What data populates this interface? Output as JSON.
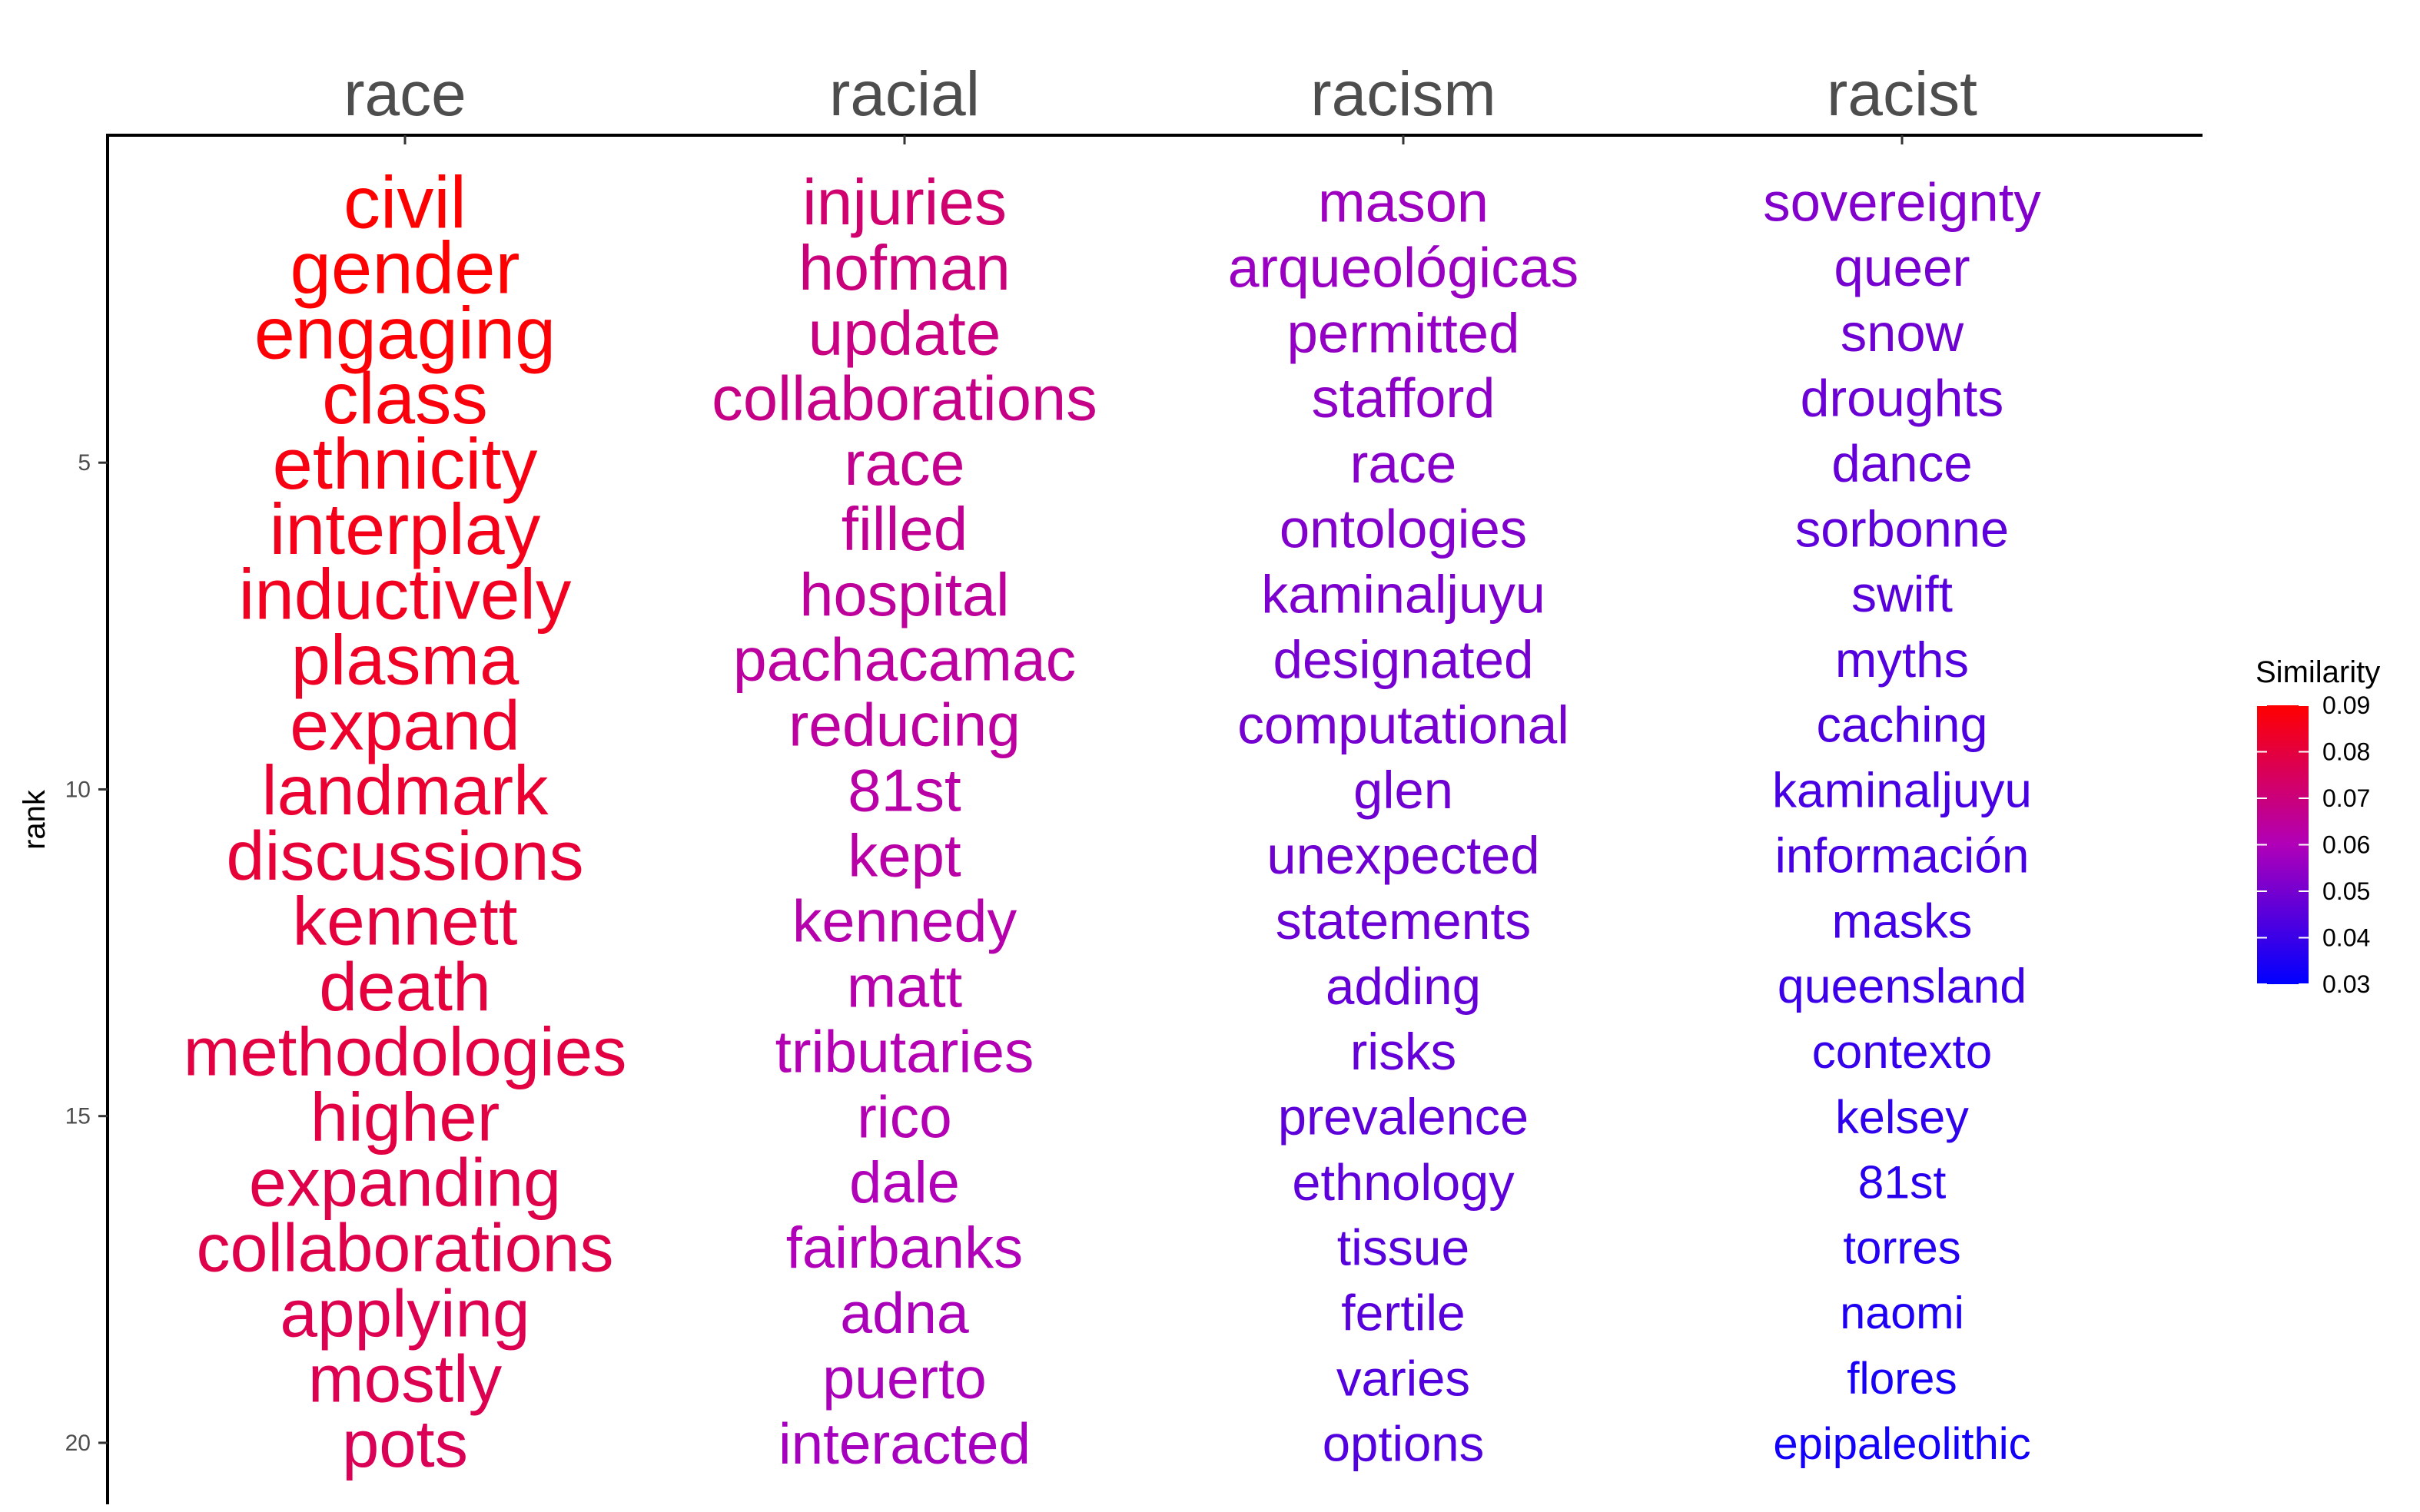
{
  "chart_data": {
    "type": "table",
    "ylabel": "rank",
    "y_ticks": [
      5,
      10,
      15,
      20
    ],
    "legend": {
      "title": "Similarity",
      "ticks": [
        "0.09",
        "0.08",
        "0.07",
        "0.06",
        "0.05",
        "0.04",
        "0.03"
      ],
      "range": [
        0.03,
        0.09
      ],
      "low_color": "#0000ff",
      "high_color": "#ff0000",
      "placement": "right"
    },
    "columns": [
      {
        "name": "race",
        "words": [
          "civil",
          "gender",
          "engaging",
          "class",
          "ethnicity",
          "interplay",
          "inductively",
          "plasma",
          "expand",
          "landmark",
          "discussions",
          "kennett",
          "death",
          "methodologies",
          "higher",
          "expanding",
          "collaborations",
          "applying",
          "mostly",
          "pots"
        ],
        "similarity": [
          0.093,
          0.091,
          0.089,
          0.088,
          0.087,
          0.086,
          0.085,
          0.084,
          0.083,
          0.082,
          0.081,
          0.08,
          0.08,
          0.079,
          0.079,
          0.078,
          0.078,
          0.077,
          0.077,
          0.076
        ]
      },
      {
        "name": "racial",
        "words": [
          "injuries",
          "hofman",
          "update",
          "collaborations",
          "race",
          "filled",
          "hospital",
          "pachacamac",
          "reducing",
          "81st",
          "kept",
          "kennedy",
          "matt",
          "tributaries",
          "rico",
          "dale",
          "fairbanks",
          "adna",
          "puerto",
          "interacted"
        ],
        "similarity": [
          0.072,
          0.07,
          0.069,
          0.068,
          0.067,
          0.066,
          0.065,
          0.064,
          0.064,
          0.063,
          0.063,
          0.062,
          0.062,
          0.061,
          0.061,
          0.06,
          0.06,
          0.059,
          0.059,
          0.058
        ]
      },
      {
        "name": "racism",
        "words": [
          "mason",
          "arqueológicas",
          "permitted",
          "stafford",
          "race",
          "ontologies",
          "kaminaljuyu",
          "designated",
          "computational",
          "glen",
          "unexpected",
          "statements",
          "adding",
          "risks",
          "prevalence",
          "ethnology",
          "tissue",
          "fertile",
          "varies",
          "options"
        ],
        "similarity": [
          0.057,
          0.056,
          0.055,
          0.054,
          0.053,
          0.052,
          0.051,
          0.05,
          0.05,
          0.049,
          0.049,
          0.048,
          0.047,
          0.047,
          0.046,
          0.046,
          0.045,
          0.045,
          0.044,
          0.044
        ]
      },
      {
        "name": "racist",
        "words": [
          "sovereignty",
          "queer",
          "snow",
          "droughts",
          "dance",
          "sorbonne",
          "swift",
          "myths",
          "caching",
          "kaminaljuyu",
          "información",
          "masks",
          "queensland",
          "contexto",
          "kelsey",
          "81st",
          "torres",
          "naomi",
          "flores",
          "epipaleolithic"
        ],
        "similarity": [
          0.052,
          0.05,
          0.049,
          0.048,
          0.047,
          0.046,
          0.045,
          0.044,
          0.043,
          0.042,
          0.042,
          0.041,
          0.04,
          0.039,
          0.038,
          0.037,
          0.036,
          0.035,
          0.034,
          0.033
        ]
      }
    ]
  }
}
